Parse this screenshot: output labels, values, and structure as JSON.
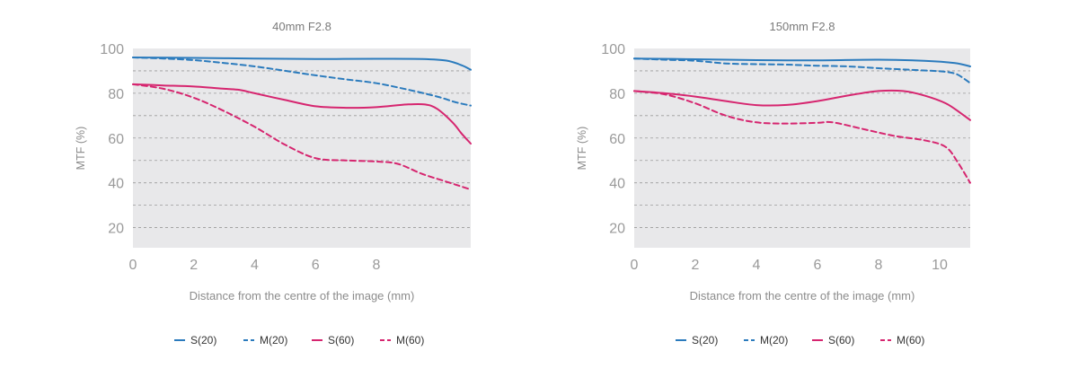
{
  "chart_data": [
    {
      "type": "line",
      "title": "40mm F2.8",
      "xlabel": "Distance from the centre of the image (mm)",
      "ylabel": "MTF (%)",
      "xlim": [
        0,
        11.1
      ],
      "ylim": [
        11,
        100
      ],
      "xticks": [
        0,
        2,
        4,
        6,
        8
      ],
      "yticks": [
        20,
        40,
        60,
        80,
        100
      ],
      "grid_minor": [
        30,
        50,
        70,
        90
      ],
      "grid": true,
      "legend_position": "bottom",
      "series": [
        {
          "name": "S(20)",
          "color": "#2b7bbd",
          "dash": false,
          "points": [
            [
              0,
              96
            ],
            [
              2,
              95.8
            ],
            [
              4,
              95.5
            ],
            [
              6,
              95.3
            ],
            [
              8,
              95.4
            ],
            [
              9.5,
              95.3
            ],
            [
              10.3,
              94.6
            ],
            [
              10.8,
              92.5
            ],
            [
              11.1,
              90.5
            ]
          ]
        },
        {
          "name": "M(20)",
          "color": "#2b7bbd",
          "dash": true,
          "points": [
            [
              0,
              96
            ],
            [
              1,
              95.5
            ],
            [
              2,
              94.8
            ],
            [
              3,
              93.5
            ],
            [
              4,
              92
            ],
            [
              5,
              90
            ],
            [
              6,
              88
            ],
            [
              7,
              86.2
            ],
            [
              8,
              84.5
            ],
            [
              9,
              81.7
            ],
            [
              10,
              78.5
            ],
            [
              10.6,
              76
            ],
            [
              11.1,
              74.5
            ]
          ]
        },
        {
          "name": "S(60)",
          "color": "#d6256f",
          "dash": false,
          "points": [
            [
              0,
              84
            ],
            [
              1,
              83.5
            ],
            [
              2,
              83
            ],
            [
              3,
              82
            ],
            [
              3.5,
              81.5
            ],
            [
              4,
              80
            ],
            [
              5,
              77
            ],
            [
              6,
              74.2
            ],
            [
              7,
              73.5
            ],
            [
              8,
              73.8
            ],
            [
              9,
              75
            ],
            [
              9.6,
              75
            ],
            [
              10,
              73
            ],
            [
              10.5,
              67
            ],
            [
              10.8,
              62
            ],
            [
              11.1,
              57.5
            ]
          ]
        },
        {
          "name": "M(60)",
          "color": "#d6256f",
          "dash": true,
          "points": [
            [
              0,
              84
            ],
            [
              1,
              82
            ],
            [
              2,
              78
            ],
            [
              3,
              72
            ],
            [
              4,
              65
            ],
            [
              5,
              57
            ],
            [
              6,
              51
            ],
            [
              7,
              50
            ],
            [
              8,
              49.5
            ],
            [
              8.7,
              48.5
            ],
            [
              9.5,
              44
            ],
            [
              10.3,
              40.5
            ],
            [
              11.1,
              37
            ]
          ]
        }
      ]
    },
    {
      "type": "line",
      "title": "150mm F2.8",
      "xlabel": "Distance from the centre of the image (mm)",
      "ylabel": "MTF (%)",
      "xlim": [
        0,
        11
      ],
      "ylim": [
        11,
        100
      ],
      "xticks": [
        0,
        2,
        4,
        6,
        8,
        10
      ],
      "yticks": [
        20,
        40,
        60,
        80,
        100
      ],
      "grid_minor": [
        30,
        50,
        70,
        90
      ],
      "grid": true,
      "legend_position": "bottom",
      "series": [
        {
          "name": "S(20)",
          "color": "#2b7bbd",
          "dash": false,
          "points": [
            [
              0,
              95.5
            ],
            [
              2,
              95.2
            ],
            [
              4,
              94.8
            ],
            [
              6,
              94.7
            ],
            [
              8,
              95
            ],
            [
              9.5,
              94.5
            ],
            [
              10.5,
              93.5
            ],
            [
              11,
              92
            ]
          ]
        },
        {
          "name": "M(20)",
          "color": "#2b7bbd",
          "dash": true,
          "points": [
            [
              0,
              95.5
            ],
            [
              1,
              95
            ],
            [
              2,
              94.5
            ],
            [
              3,
              93.3
            ],
            [
              4,
              93
            ],
            [
              5,
              92.8
            ],
            [
              6,
              92.3
            ],
            [
              7,
              92
            ],
            [
              8,
              91.2
            ],
            [
              9,
              90.5
            ],
            [
              10,
              89.8
            ],
            [
              10.5,
              88.8
            ],
            [
              10.8,
              86.5
            ],
            [
              11,
              84.5
            ]
          ]
        },
        {
          "name": "S(60)",
          "color": "#d6256f",
          "dash": false,
          "points": [
            [
              0,
              81
            ],
            [
              1,
              80
            ],
            [
              2,
              78.5
            ],
            [
              3,
              76.5
            ],
            [
              4,
              74.7
            ],
            [
              5,
              74.8
            ],
            [
              6,
              76.5
            ],
            [
              7,
              79
            ],
            [
              8,
              81
            ],
            [
              8.8,
              81
            ],
            [
              9.5,
              79
            ],
            [
              10.2,
              75.5
            ],
            [
              10.7,
              71
            ],
            [
              11,
              68
            ]
          ]
        },
        {
          "name": "M(60)",
          "color": "#d6256f",
          "dash": true,
          "points": [
            [
              0,
              81
            ],
            [
              1,
              79.5
            ],
            [
              2,
              75.5
            ],
            [
              3,
              70
            ],
            [
              4,
              67
            ],
            [
              5,
              66.5
            ],
            [
              6,
              66.8
            ],
            [
              6.5,
              67
            ],
            [
              7.5,
              64
            ],
            [
              8.5,
              61
            ],
            [
              9.5,
              59
            ],
            [
              10.2,
              56
            ],
            [
              10.6,
              49
            ],
            [
              11,
              40
            ]
          ]
        }
      ]
    }
  ]
}
